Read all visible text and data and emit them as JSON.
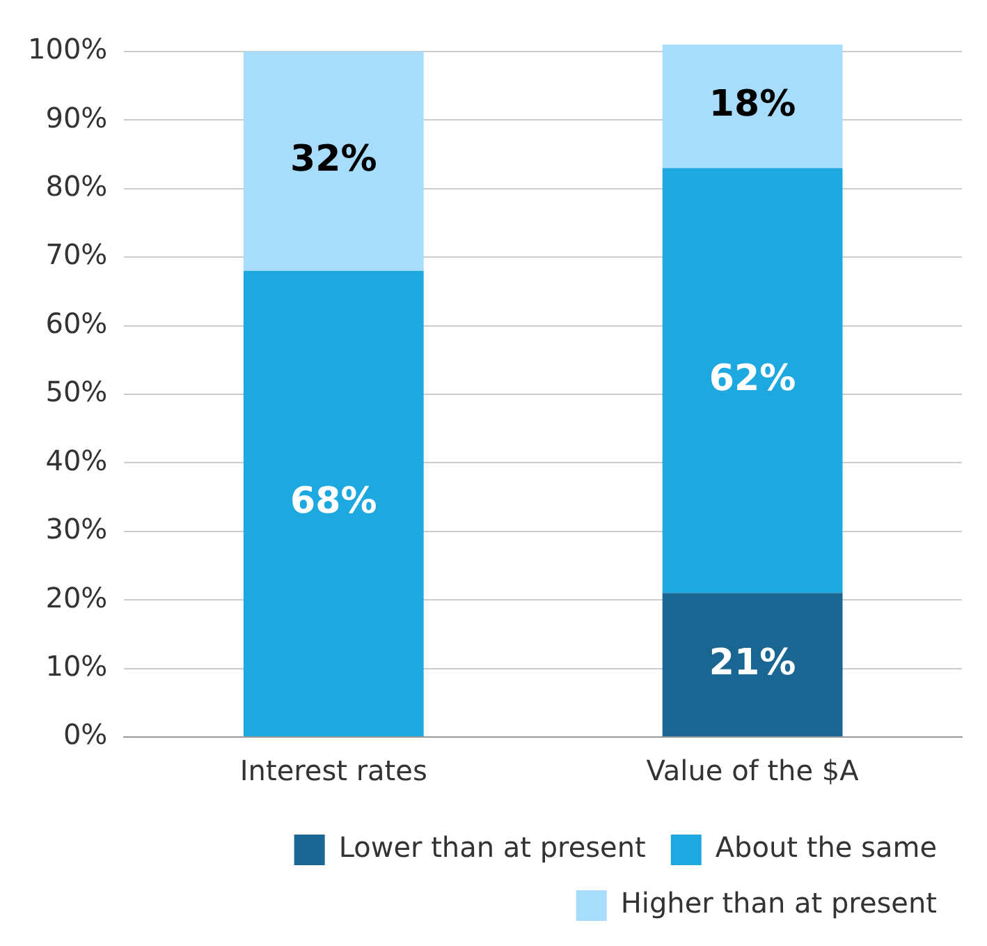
{
  "chart_data": {
    "type": "bar",
    "stacked": true,
    "categories": [
      "Interest rates",
      "Value of the $A"
    ],
    "series": [
      {
        "name": "Lower than at present",
        "color": "#1a6693",
        "values": [
          0,
          21
        ],
        "value_labels": [
          null,
          "21%"
        ]
      },
      {
        "name": "About the same",
        "color": "#1ea8e0",
        "values": [
          68,
          62
        ],
        "value_labels": [
          "68%",
          "62%"
        ]
      },
      {
        "name": "Higher than at present",
        "color": "#a8dcfb",
        "values": [
          32,
          18
        ],
        "value_labels": [
          "32%",
          "18%"
        ]
      }
    ],
    "ylim": [
      0,
      101
    ],
    "yticks": [
      {
        "value": 0,
        "label": "0%"
      },
      {
        "value": 10,
        "label": "10%"
      },
      {
        "value": 20,
        "label": "20%"
      },
      {
        "value": 30,
        "label": "30%"
      },
      {
        "value": 40,
        "label": "40%"
      },
      {
        "value": 50,
        "label": "50%"
      },
      {
        "value": 60,
        "label": "60%"
      },
      {
        "value": 70,
        "label": "70%"
      },
      {
        "value": 80,
        "label": "80%"
      },
      {
        "value": 90,
        "label": "90%"
      },
      {
        "value": 100,
        "label": "100%"
      }
    ],
    "grid": "y",
    "legend": "bottom"
  }
}
